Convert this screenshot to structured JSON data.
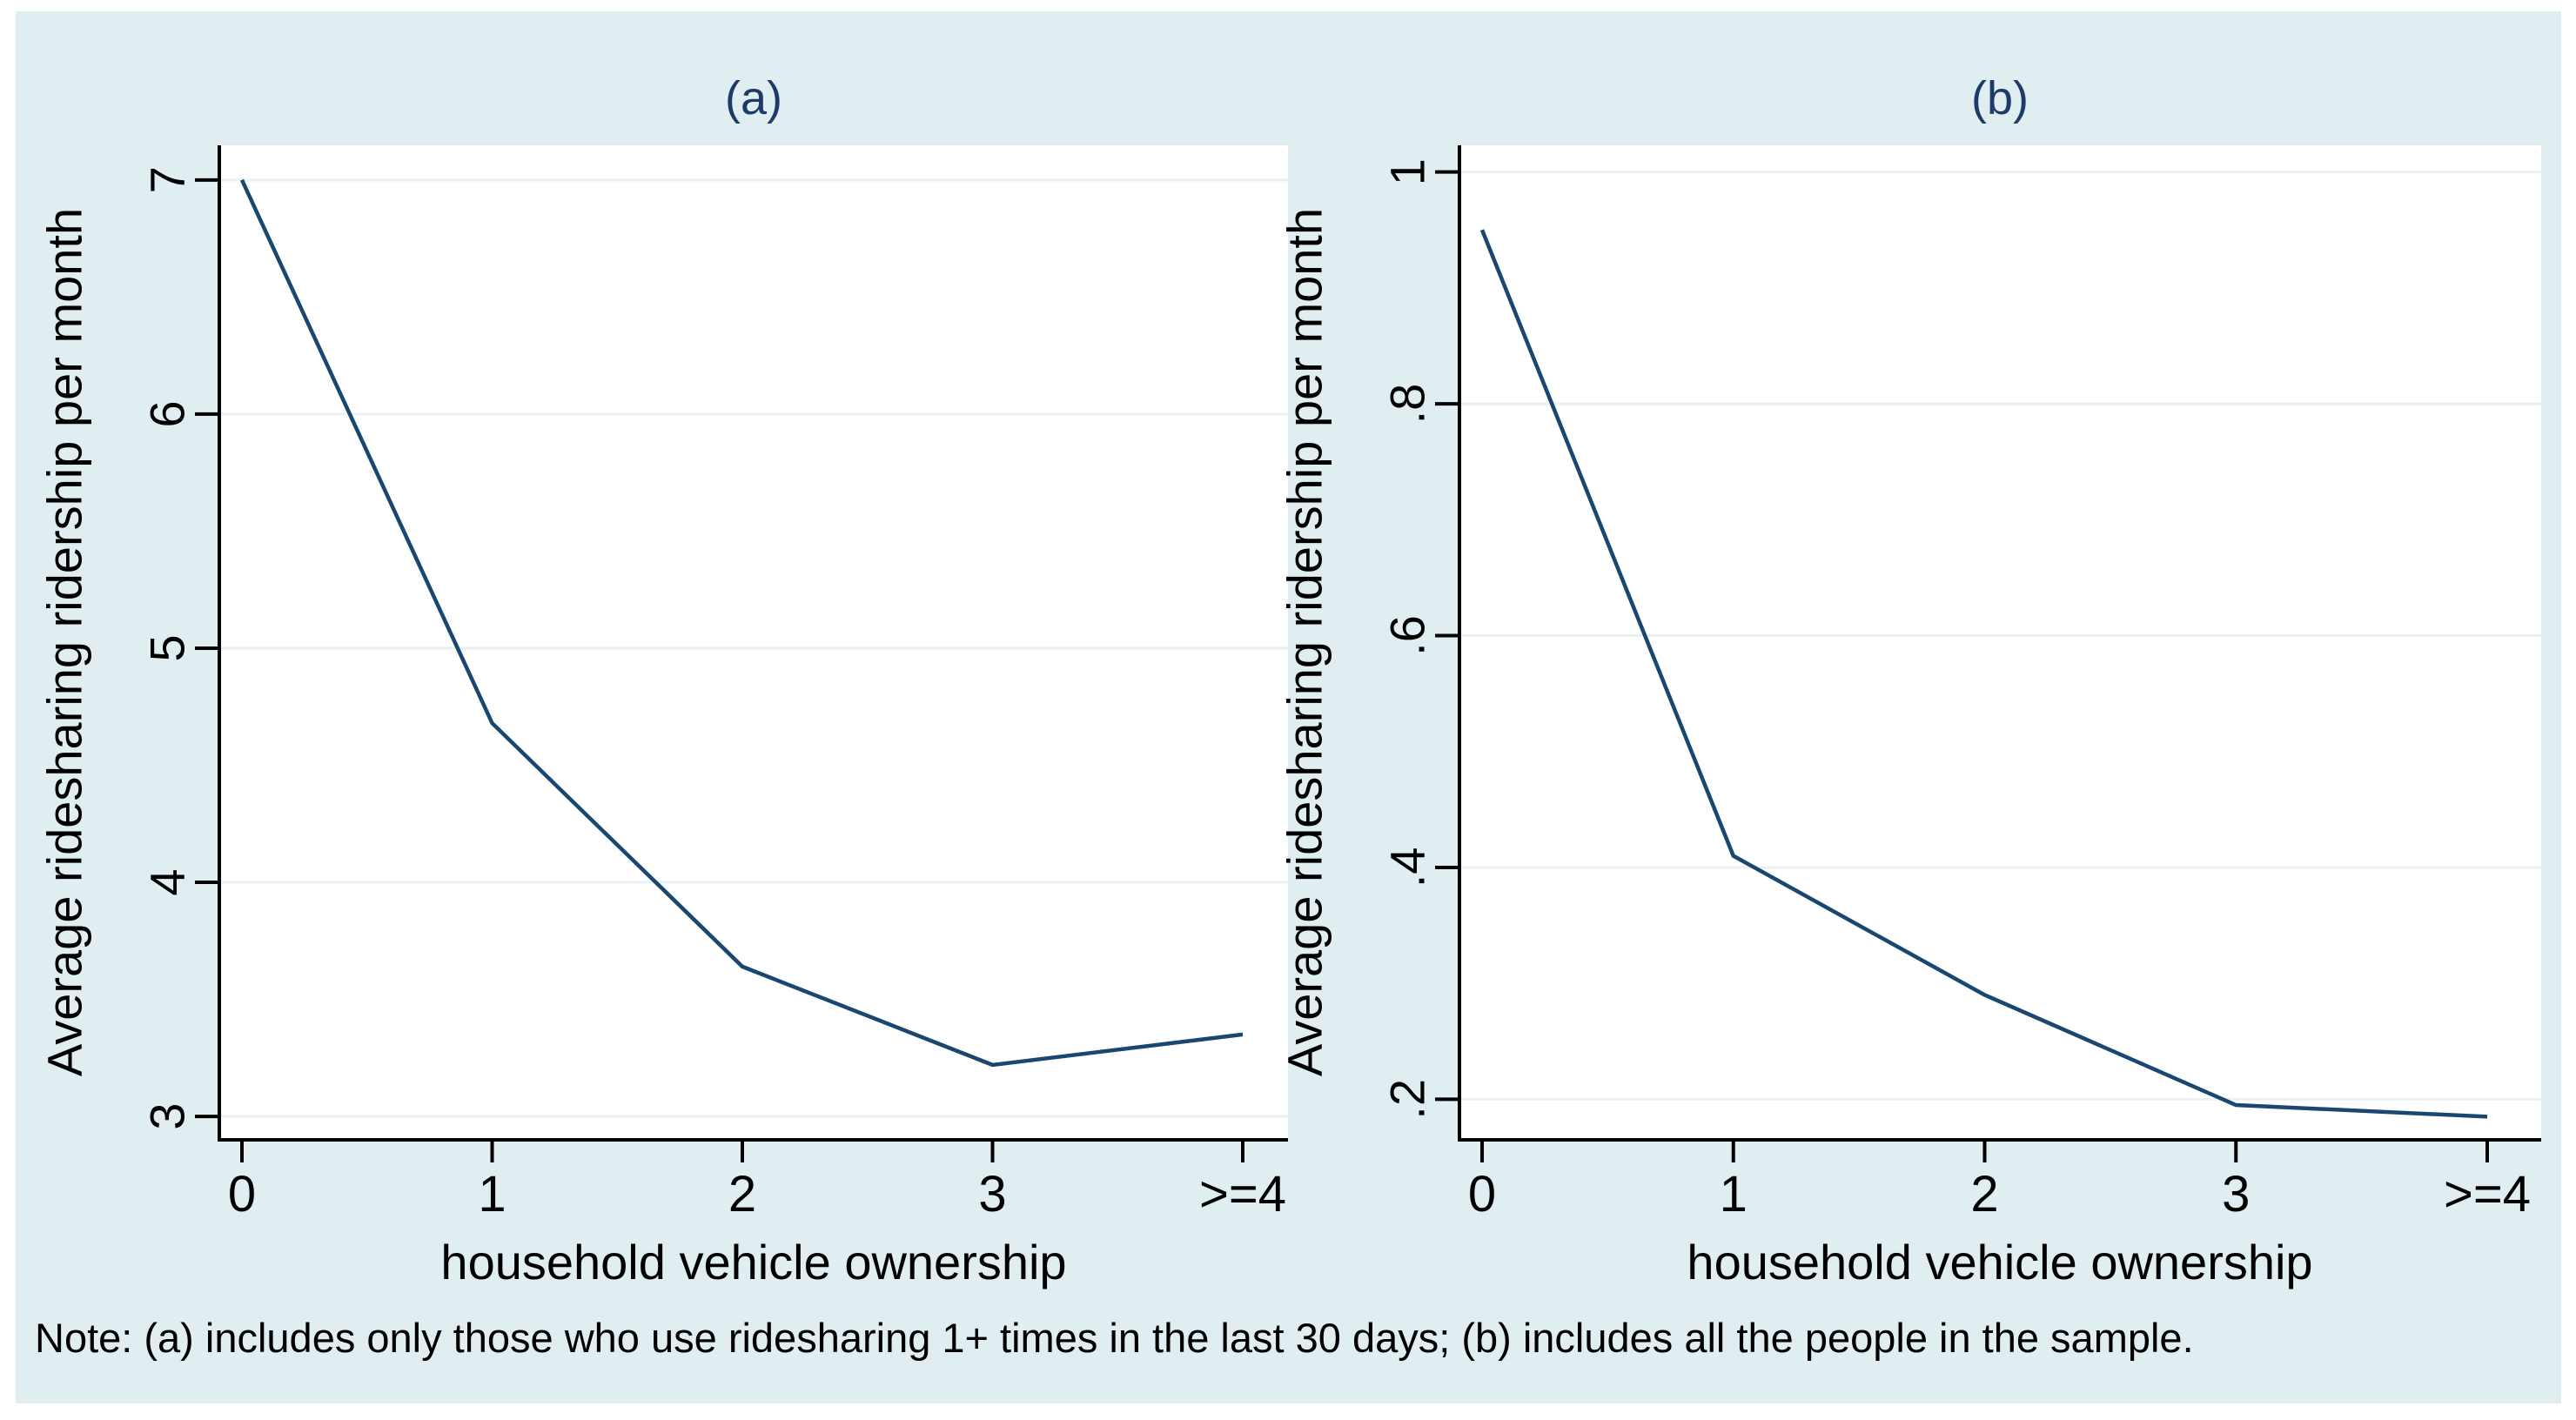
{
  "figure": {
    "note": "Note: (a) includes only those who use ridesharing 1+ times in the last 30 days; (b) includes all the people in the sample.",
    "colors": {
      "page_bg": "#ffffff",
      "region_bg": "#e0edf1",
      "plot_bg": "#ffffff",
      "grid": "#e8f2f5",
      "axis": "#000000",
      "line": "#1a476f",
      "title_text": "#1e3a66",
      "text": "#000000"
    }
  },
  "chart_data": [
    {
      "type": "line",
      "panel": "a",
      "title": "(a)",
      "xlabel": "household vehicle ownership",
      "ylabel": "Average ridesharing ridership per month",
      "categories": [
        "0",
        "1",
        "2",
        "3",
        ">=4"
      ],
      "values": [
        7.0,
        4.68,
        3.64,
        3.22,
        3.35
      ],
      "ytick_labels": [
        "7",
        "6",
        "5",
        "4",
        "3"
      ],
      "ytick_values": [
        7,
        6,
        5,
        4,
        3
      ],
      "ylim": [
        2.9,
        7.148
      ],
      "grid": true,
      "legend": "none"
    },
    {
      "type": "line",
      "panel": "b",
      "title": "(b)",
      "xlabel": "household vehicle ownership",
      "ylabel": "Average ridesharing ridership per month",
      "categories": [
        "0",
        "1",
        "2",
        "3",
        ">=4"
      ],
      "values": [
        0.95,
        0.41,
        0.29,
        0.195,
        0.185
      ],
      "ytick_labels": [
        "1",
        ".8",
        ".6",
        ".4",
        ".2"
      ],
      "ytick_values": [
        1,
        0.8,
        0.6,
        0.4,
        0.2
      ],
      "ylim": [
        0.165,
        1.023
      ],
      "grid": true,
      "legend": "none"
    }
  ]
}
